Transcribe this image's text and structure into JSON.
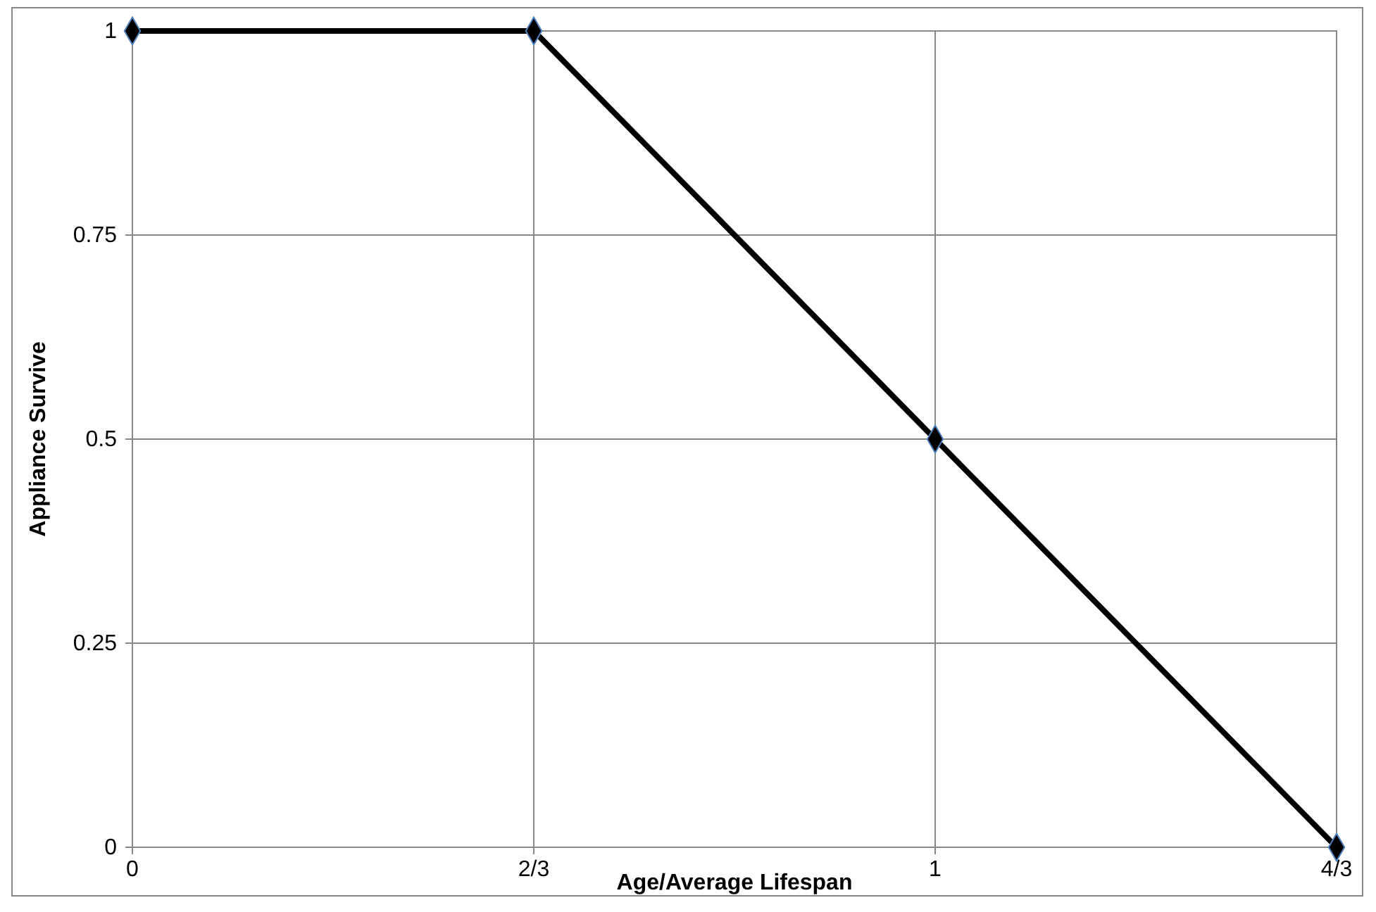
{
  "chart_data": {
    "type": "line",
    "xlabel": "Age/Average Lifespan",
    "ylabel": "Appliance Survive",
    "categories": [
      "0",
      "2/3",
      "1",
      "4/3"
    ],
    "series": [
      {
        "color": "#000000",
        "values": [
          1,
          1,
          0.5,
          0
        ]
      }
    ],
    "ylim": [
      0,
      1
    ],
    "yticks": [
      0,
      0.25,
      0.5,
      0.75,
      1
    ],
    "grid": true,
    "marker": "diamond",
    "line_style": "solid"
  }
}
